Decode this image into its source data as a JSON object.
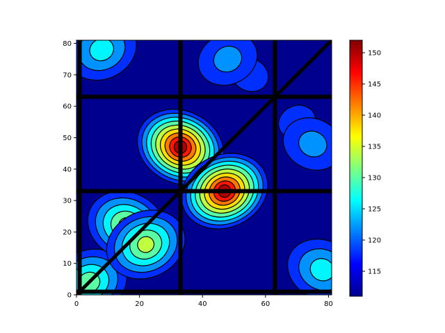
{
  "chart_data": {
    "type": "heatmap",
    "title": "",
    "xlabel": "",
    "ylabel": "",
    "xlim": [
      0,
      81
    ],
    "ylim": [
      0,
      81
    ],
    "x_ticks": [
      0,
      20,
      40,
      60,
      80
    ],
    "y_ticks": [
      0,
      10,
      20,
      30,
      40,
      50,
      60,
      70,
      80
    ],
    "colormap": "jet",
    "colorbar": {
      "min": 111,
      "max": 152,
      "ticks": [
        115,
        120,
        125,
        130,
        135,
        140,
        145,
        150
      ]
    },
    "contour_levels": [
      111,
      114,
      118,
      122,
      126,
      130,
      134,
      138,
      142,
      146,
      150,
      152
    ],
    "grid": false,
    "legend": "none",
    "separator_lines": [
      1,
      33,
      63
    ],
    "diagonal": true,
    "peaks": [
      {
        "x": 33,
        "y": 47,
        "value": 150
      },
      {
        "x": 47,
        "y": 33,
        "value": 150
      },
      {
        "x": 16,
        "y": 22,
        "value": 135
      },
      {
        "x": 22,
        "y": 16,
        "value": 135
      },
      {
        "x": 8,
        "y": 78,
        "value": 128
      },
      {
        "x": 78,
        "y": 8,
        "value": 128
      },
      {
        "x": 48,
        "y": 75,
        "value": 124
      },
      {
        "x": 75,
        "y": 48,
        "value": 124
      },
      {
        "x": 4,
        "y": 4,
        "value": 132
      },
      {
        "x": 70,
        "y": 55,
        "value": 120
      },
      {
        "x": 55,
        "y": 70,
        "value": 120
      }
    ]
  }
}
